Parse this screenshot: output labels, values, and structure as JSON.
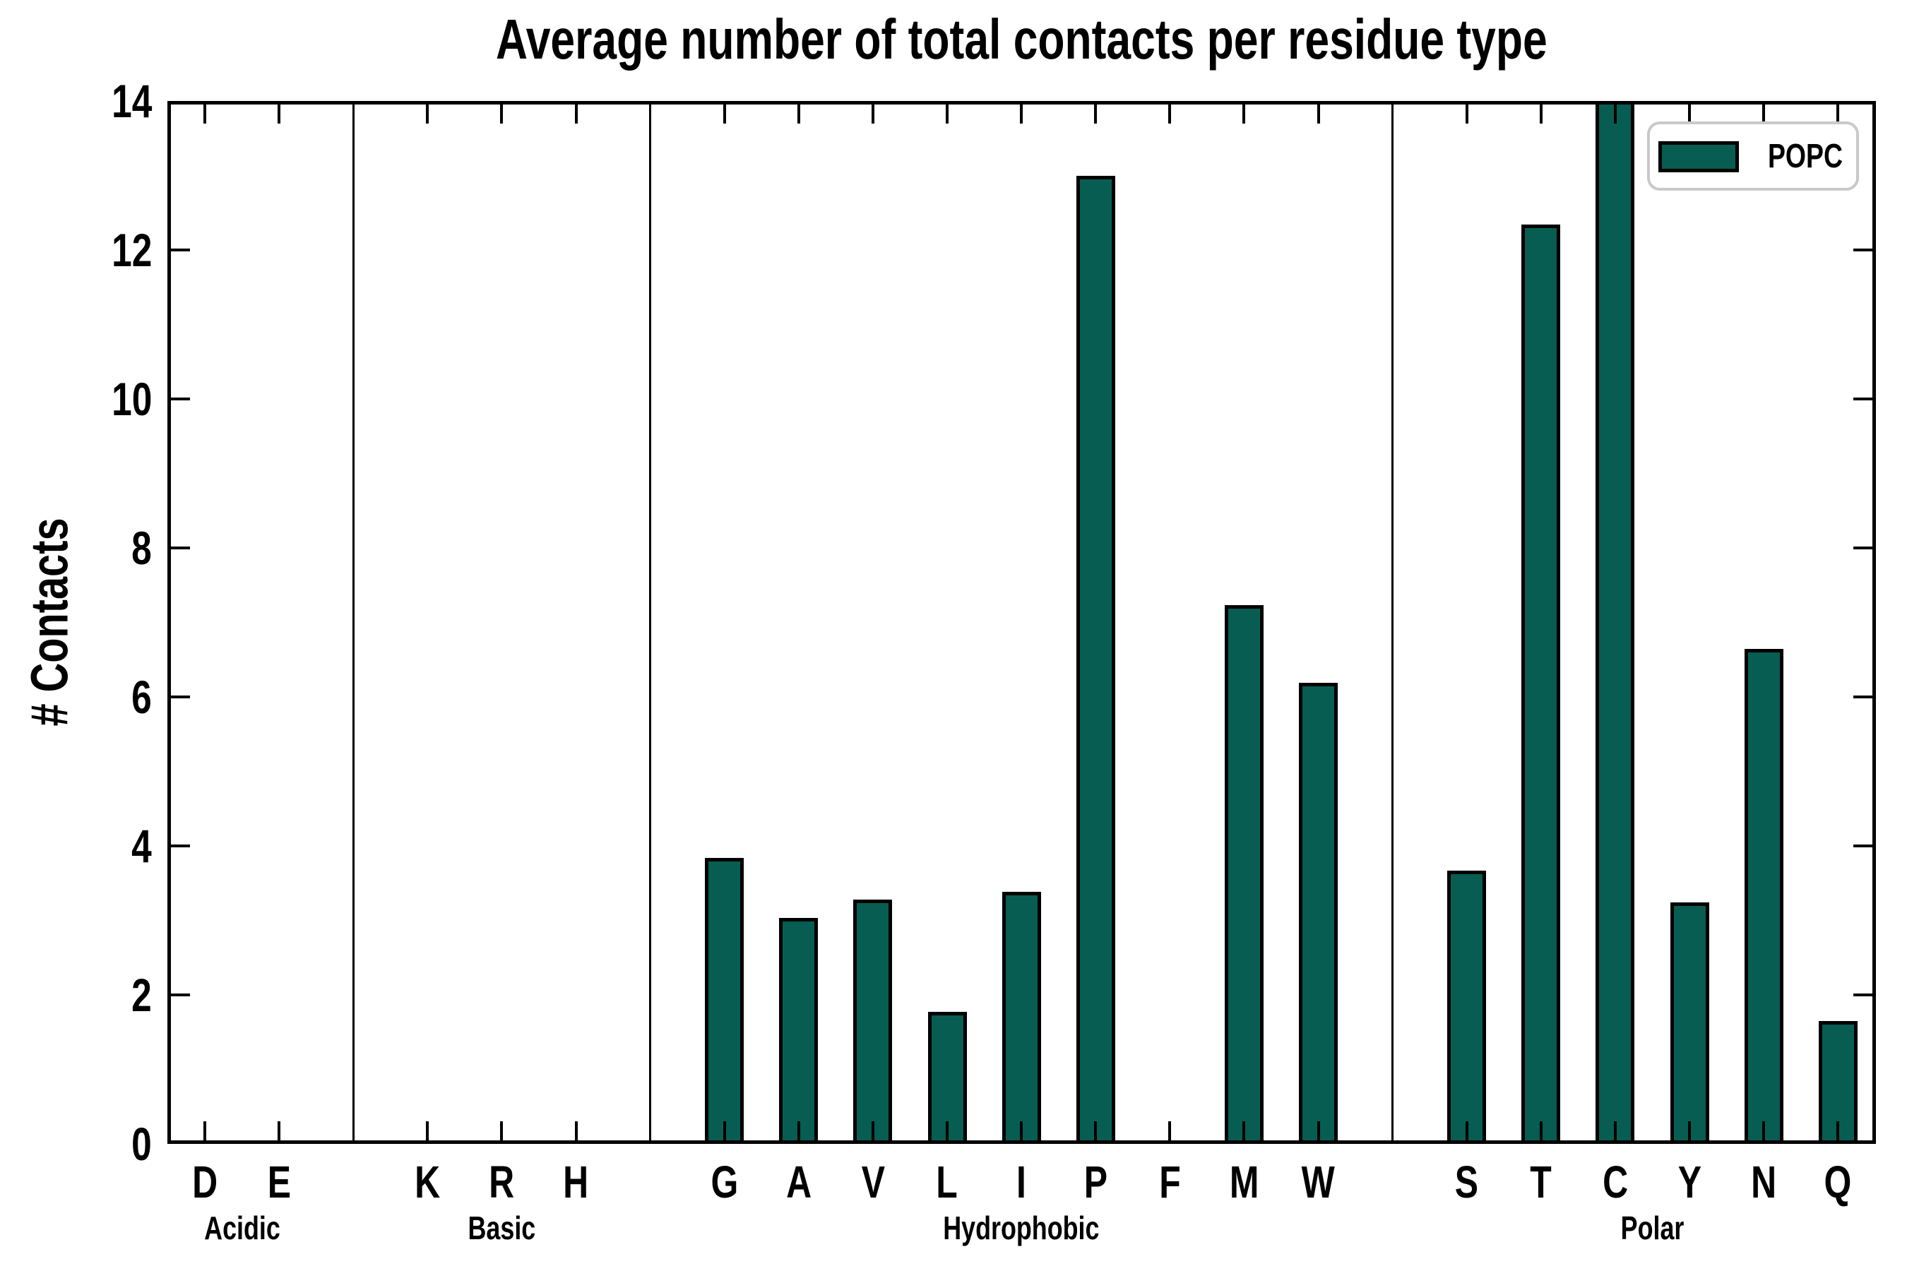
{
  "title": "Average number of total contacts per residue type",
  "ylabel": "# Contacts",
  "legend": {
    "label": "POPC"
  },
  "colors": {
    "bar_fill": "#075D52",
    "bar_edge": "#000000",
    "legend_border": "#c9c9c9",
    "axes": "#000000",
    "background": "#ffffff"
  },
  "chart_data": {
    "type": "bar",
    "title": "Average number of total contacts per residue type",
    "xlabel": "",
    "ylabel": "# Contacts",
    "ylim": [
      0,
      14
    ],
    "yticks": [
      0,
      2,
      4,
      6,
      8,
      10,
      12,
      14
    ],
    "grid": false,
    "legend_position": "upper right",
    "series": [
      {
        "name": "POPC",
        "color": "#075D52"
      }
    ],
    "categories": [
      "D",
      "E",
      "K",
      "R",
      "H",
      "G",
      "A",
      "V",
      "L",
      "I",
      "P",
      "F",
      "M",
      "W",
      "S",
      "T",
      "C",
      "Y",
      "N",
      "Q"
    ],
    "values": [
      0,
      0,
      0,
      0,
      0,
      3.84,
      3.03,
      3.28,
      1.77,
      3.38,
      13.0,
      0,
      7.23,
      6.19,
      3.67,
      12.34,
      14.0,
      3.24,
      6.64,
      1.65
    ],
    "groups": [
      {
        "label": "Acidic",
        "categories": [
          "D",
          "E"
        ],
        "values": [
          0,
          0
        ]
      },
      {
        "label": "Basic",
        "categories": [
          "K",
          "R",
          "H"
        ],
        "values": [
          0,
          0,
          0
        ]
      },
      {
        "label": "Hydrophobic",
        "categories": [
          "G",
          "A",
          "V",
          "L",
          "I",
          "P",
          "F",
          "M",
          "W"
        ],
        "values": [
          3.84,
          3.03,
          3.28,
          1.77,
          3.38,
          13.0,
          0,
          7.23,
          6.19
        ]
      },
      {
        "label": "Polar",
        "categories": [
          "S",
          "T",
          "C",
          "Y",
          "N",
          "Q"
        ],
        "values": [
          3.67,
          12.34,
          14.0,
          3.24,
          6.64,
          1.65
        ]
      }
    ],
    "annotations": [
      "C bar reaches the top axis and is clipped at 14"
    ]
  }
}
